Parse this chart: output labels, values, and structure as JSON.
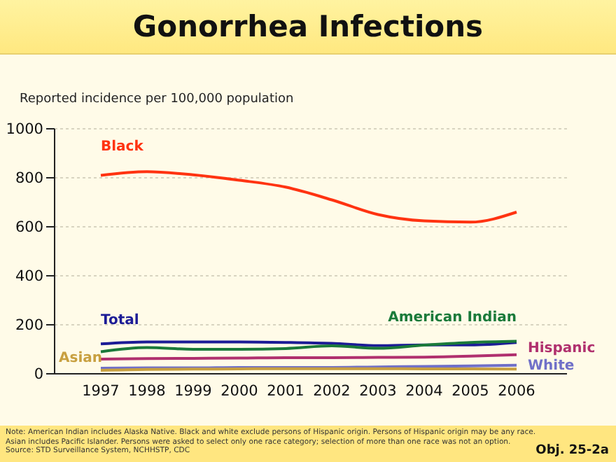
{
  "chart_data": {
    "type": "line",
    "title": "Gonorrhea Infections",
    "ylabel": "Reported incidence per 100,000 population",
    "categories": [
      "1997",
      "1998",
      "1999",
      "2000",
      "2001",
      "2002",
      "2003",
      "2004",
      "2005",
      "2006"
    ],
    "series": [
      {
        "name": "Black",
        "color": "#ff3311",
        "values": [
          810,
          825,
          812,
          790,
          762,
          710,
          650,
          624,
          619,
          660
        ]
      },
      {
        "name": "Total",
        "color": "#1c1c96",
        "values": [
          122,
          130,
          130,
          130,
          128,
          124,
          115,
          118,
          118,
          128
        ]
      },
      {
        "name": "American Indian",
        "color": "#1a7a3a",
        "values": [
          90,
          107,
          100,
          100,
          103,
          114,
          104,
          117,
          128,
          133
        ]
      },
      {
        "name": "Hispanic",
        "color": "#b0306e",
        "values": [
          60,
          62,
          63,
          64,
          66,
          66,
          67,
          68,
          72,
          78
        ]
      },
      {
        "name": "White",
        "color": "#7070c8",
        "values": [
          23,
          24,
          24,
          26,
          26,
          26,
          28,
          30,
          32,
          35
        ]
      },
      {
        "name": "Asian",
        "color": "#c8a040",
        "values": [
          14,
          18,
          19,
          20,
          21,
          21,
          21,
          20,
          20,
          19
        ]
      }
    ],
    "ylim": [
      0,
      1000
    ],
    "yticks": [
      0,
      200,
      400,
      600,
      800,
      1000
    ],
    "grid": "y",
    "legend": false,
    "marker": "none",
    "line_style": "solid",
    "annotations": [
      "Note: American Indian includes Alaska Native. Black and white exclude persons of Hispanic origin. Persons of Hispanic origin may be any race. Asian includes Pacific Islander. Persons were asked to select only one race category; selection of more than one race was not an option.",
      "Source: STD Surveillance System, NCHHSTP, CDC",
      "Obj. 25-2a"
    ]
  }
}
